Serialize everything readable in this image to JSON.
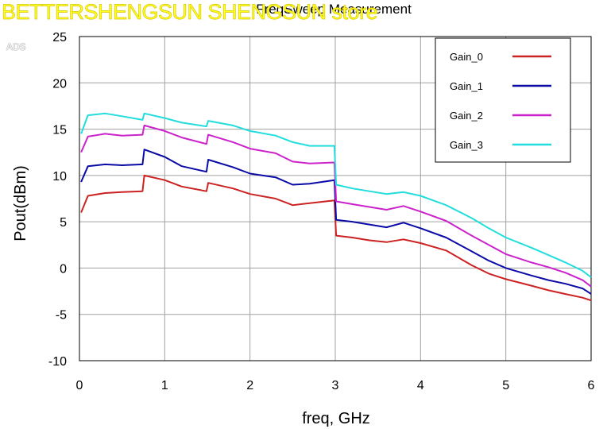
{
  "watermark": "BETTERSHENGSUN SHENGSUN store",
  "tool_mark": "ADS",
  "chart_data": {
    "type": "line",
    "title": "FreqSweep Measurement",
    "xlabel": "freq, GHz",
    "ylabel": "Pout(dBm)",
    "xlim": [
      0,
      6
    ],
    "ylim": [
      -10,
      25
    ],
    "xticks": [
      "0",
      "1",
      "2",
      "3",
      "4",
      "5",
      "6"
    ],
    "yticks": [
      "-10",
      "-5",
      "0",
      "5",
      "10",
      "15",
      "20",
      "25"
    ],
    "grid": true,
    "legend_position": "top-right",
    "x": [
      0.02,
      0.1,
      0.3,
      0.5,
      0.74,
      0.76,
      1.0,
      1.2,
      1.49,
      1.51,
      1.8,
      2.0,
      2.3,
      2.5,
      2.7,
      2.99,
      3.01,
      3.2,
      3.4,
      3.6,
      3.8,
      4.0,
      4.3,
      4.6,
      4.8,
      5.0,
      5.3,
      5.5,
      5.7,
      5.9,
      6.0
    ],
    "series": [
      {
        "name": "Gain_0",
        "color": "#cc2222",
        "values": [
          6.0,
          7.8,
          8.1,
          8.2,
          8.3,
          10.0,
          9.5,
          8.8,
          8.3,
          9.2,
          8.6,
          8.0,
          7.5,
          6.8,
          7.0,
          7.3,
          3.5,
          3.3,
          3.0,
          2.8,
          3.1,
          2.7,
          1.9,
          0.3,
          -0.6,
          -1.2,
          -1.9,
          -2.4,
          -2.8,
          -3.2,
          -3.5
        ]
      },
      {
        "name": "Gain_1",
        "color": "#0a0aa6",
        "values": [
          9.3,
          11.0,
          11.2,
          11.1,
          11.2,
          12.8,
          12.0,
          11.0,
          10.4,
          11.7,
          10.9,
          10.2,
          9.8,
          9.0,
          9.1,
          9.5,
          5.2,
          5.0,
          4.7,
          4.4,
          4.9,
          4.3,
          3.3,
          1.8,
          0.8,
          0.0,
          -0.8,
          -1.3,
          -1.7,
          -2.2,
          -2.8
        ]
      },
      {
        "name": "Gain_2",
        "color": "#cc22cc",
        "values": [
          12.5,
          14.2,
          14.5,
          14.3,
          14.4,
          15.4,
          14.8,
          14.1,
          13.4,
          14.4,
          13.6,
          12.9,
          12.4,
          11.5,
          11.3,
          11.4,
          7.2,
          6.9,
          6.6,
          6.3,
          6.7,
          6.1,
          5.1,
          3.5,
          2.5,
          1.5,
          0.6,
          0.1,
          -0.5,
          -1.3,
          -2.0
        ]
      },
      {
        "name": "Gain_3",
        "color": "#22dddd",
        "values": [
          14.5,
          16.5,
          16.7,
          16.4,
          16.0,
          16.7,
          16.2,
          15.7,
          15.3,
          15.9,
          15.4,
          14.8,
          14.3,
          13.6,
          13.2,
          13.2,
          9.0,
          8.6,
          8.3,
          8.0,
          8.2,
          7.8,
          6.8,
          5.4,
          4.3,
          3.3,
          2.2,
          1.4,
          0.6,
          -0.3,
          -1.0
        ]
      }
    ]
  }
}
